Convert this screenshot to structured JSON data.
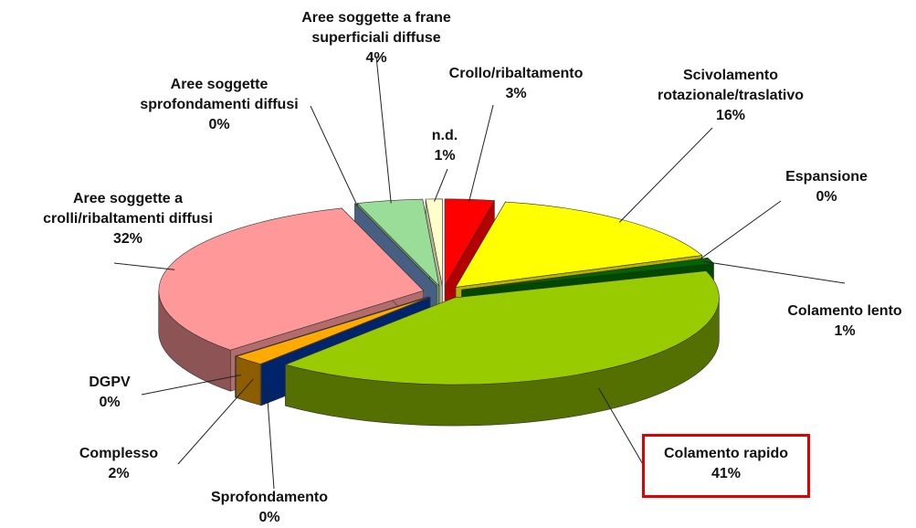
{
  "chart_data": {
    "type": "pie3d",
    "categories": [
      "Crollo/ribaltamento",
      "Scivolamento rotazionale/traslativo",
      "Espansione",
      "Colamento lento",
      "Colamento rapido",
      "Sprofondamento",
      "Complesso",
      "DGPV",
      "Aree soggette a crolli/ribaltamenti diffusi",
      "Aree soggette sprofondamenti diffusi",
      "Aree soggette a frane superficiali diffuse",
      "n.d."
    ],
    "values": [
      3,
      16,
      0,
      1,
      41,
      0,
      2,
      0,
      32,
      0,
      4,
      1
    ],
    "value_labels": [
      "3%",
      "16%",
      "0%",
      "1%",
      "41%",
      "0%",
      "2%",
      "0%",
      "32%",
      "0%",
      "4%",
      "1%"
    ],
    "colors": [
      "#ff0000",
      "#ffff00",
      "#999999",
      "#006600",
      "#99cc00",
      "#003399",
      "#ffaa00",
      "#ccccbb",
      "#ff9999",
      "#6688bb",
      "#99dd99",
      "#ffffcc"
    ]
  }
}
